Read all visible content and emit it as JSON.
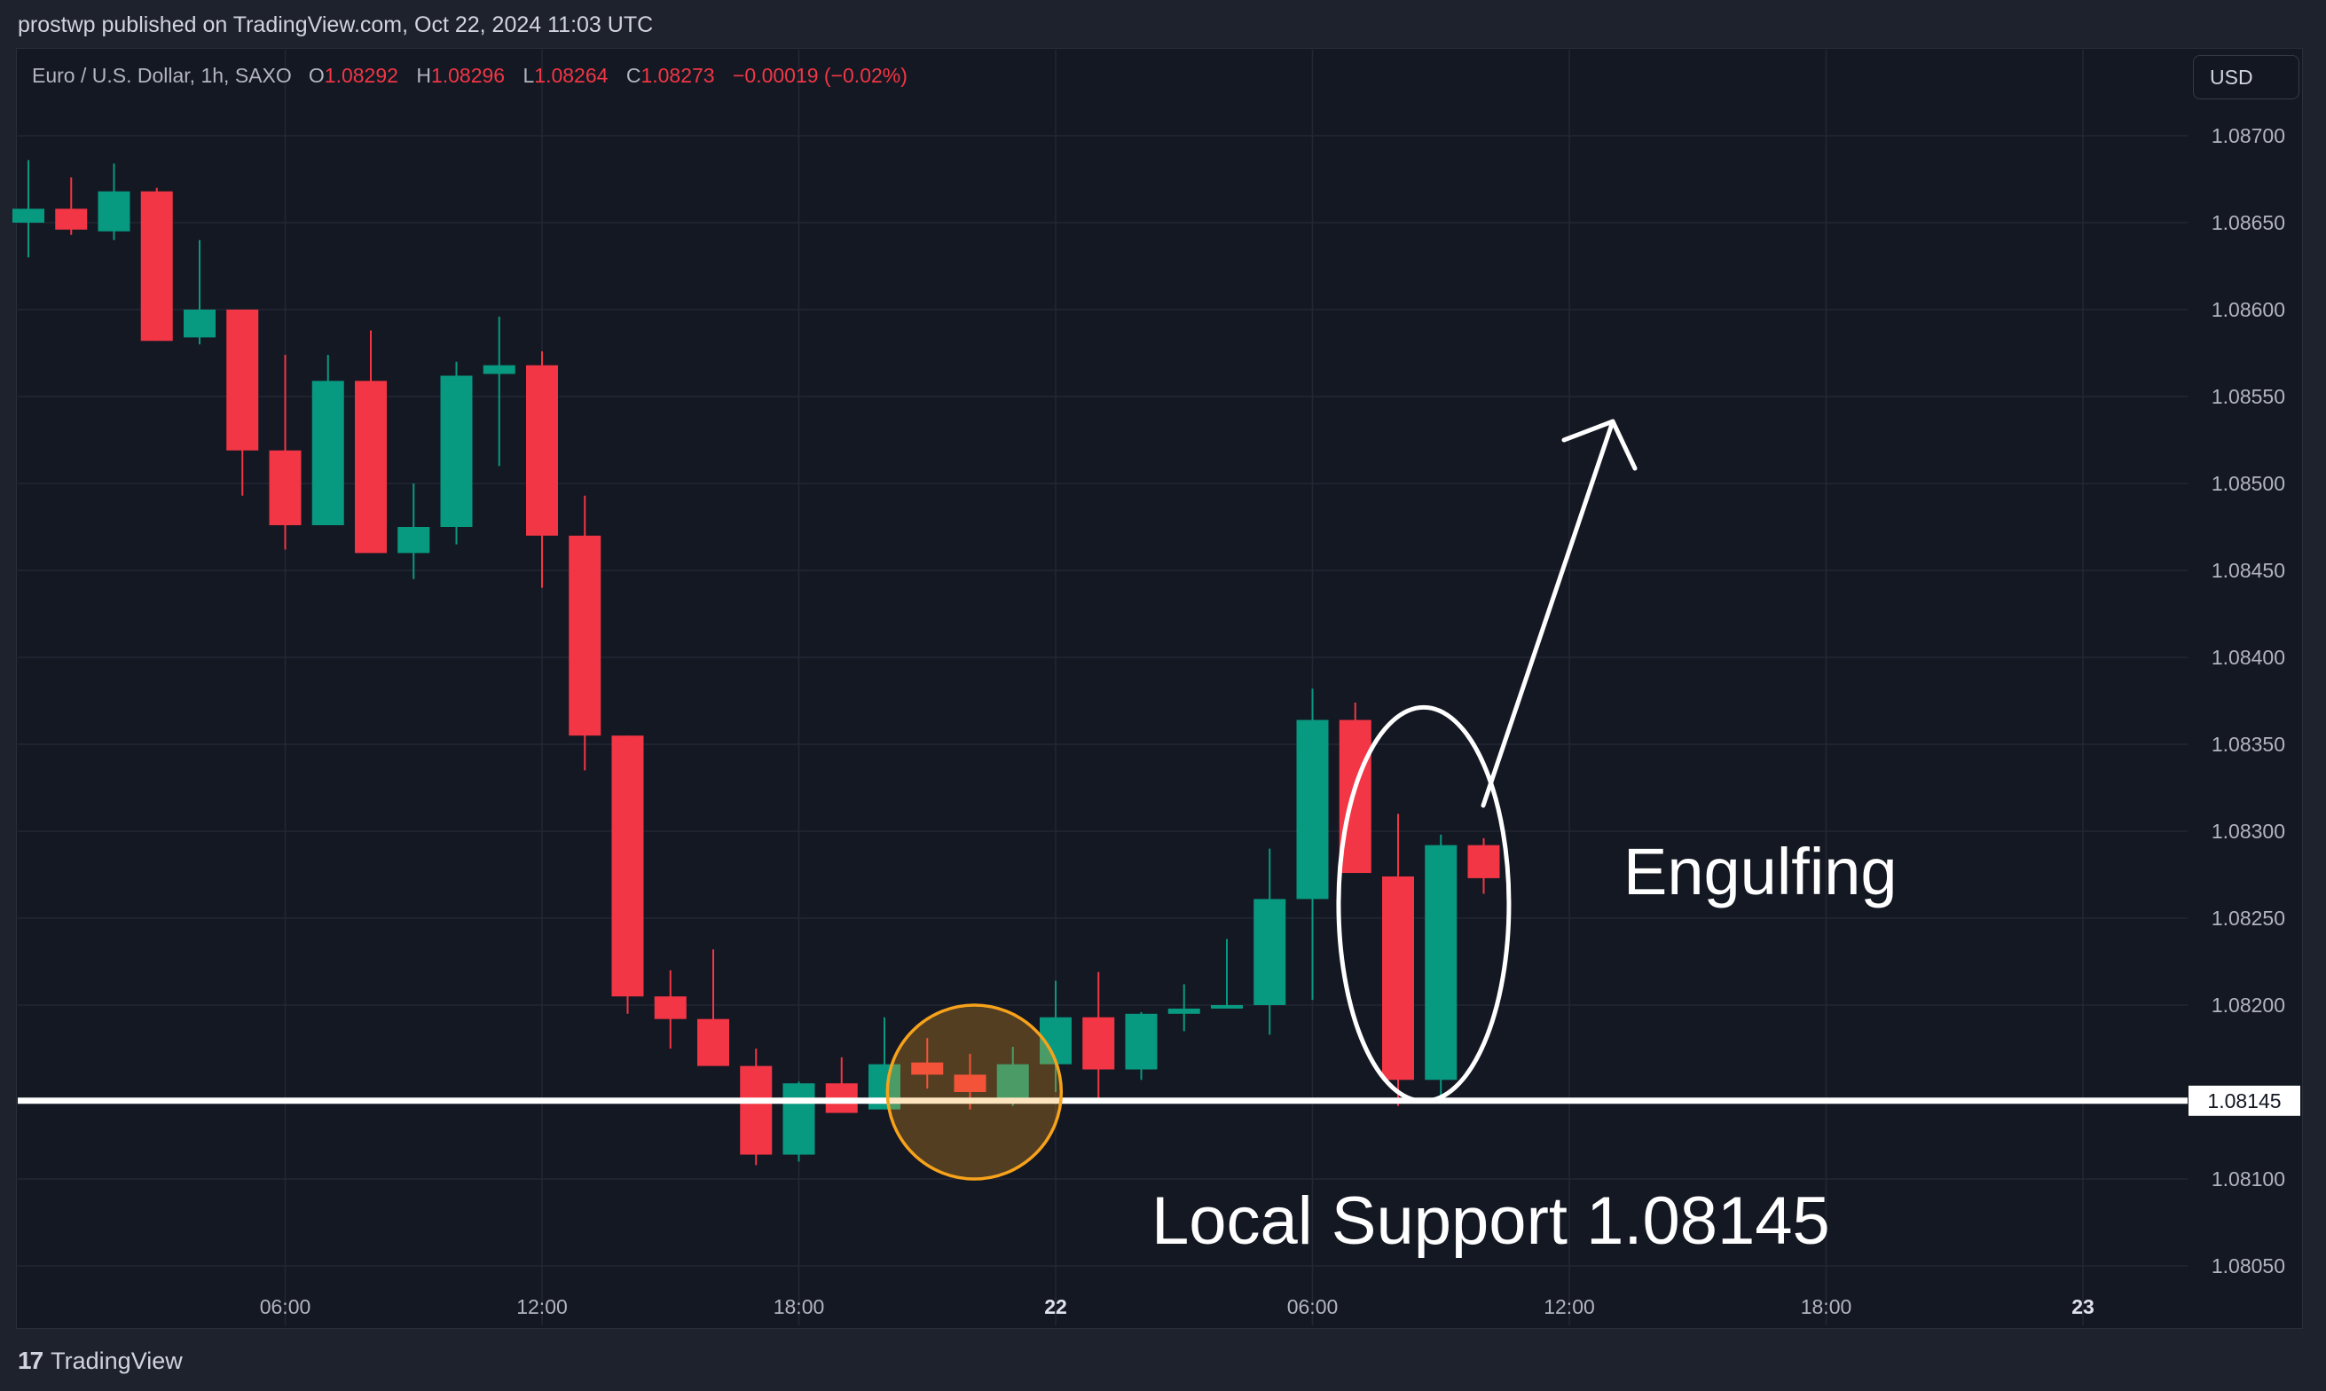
{
  "header": {
    "published": "prostwp published on TradingView.com, Oct 22, 2024 11:03 UTC"
  },
  "legend": {
    "symbol": "Euro / U.S. Dollar, 1h, SAXO",
    "o_label": "O",
    "o_value": "1.08292",
    "h_label": "H",
    "h_value": "1.08296",
    "l_label": "L",
    "l_value": "1.08264",
    "c_label": "C",
    "c_value": "1.08273",
    "change": "−0.00019 (−0.02%)"
  },
  "currency_button": "USD",
  "footer": {
    "logo_mark": "17",
    "logo_text": "TradingView"
  },
  "colors": {
    "up": "#089981",
    "down": "#f23645",
    "background": "#141823",
    "grid": "#232735",
    "highlight": "#f7a21b"
  },
  "chart_data": {
    "type": "candlestick",
    "y_ticks": [
      "1.08700",
      "1.08650",
      "1.08600",
      "1.08550",
      "1.08500",
      "1.08450",
      "1.08400",
      "1.08350",
      "1.08300",
      "1.08250",
      "1.08200",
      "1.08145",
      "1.08100",
      "1.08050"
    ],
    "ylim": [
      1.0803,
      1.0876
    ],
    "x_ticks": [
      {
        "label": "06:00",
        "hour": 6
      },
      {
        "label": "12:00",
        "hour": 12
      },
      {
        "label": "18:00",
        "hour": 18
      },
      {
        "label": "22",
        "hour": 24
      },
      {
        "label": "06:00",
        "hour": 30
      },
      {
        "label": "12:00",
        "hour": 36
      },
      {
        "label": "18:00",
        "hour": 42
      },
      {
        "label": "23",
        "hour": 48
      }
    ],
    "candles": [
      {
        "t": 0,
        "o": 1.0865,
        "h": 1.08686,
        "l": 1.0863,
        "c": 1.08658
      },
      {
        "t": 1,
        "o": 1.08658,
        "h": 1.08676,
        "l": 1.08643,
        "c": 1.08646
      },
      {
        "t": 2,
        "o": 1.08645,
        "h": 1.08684,
        "l": 1.0864,
        "c": 1.08668
      },
      {
        "t": 3,
        "o": 1.08668,
        "h": 1.0867,
        "l": 1.08582,
        "c": 1.08582
      },
      {
        "t": 4,
        "o": 1.08584,
        "h": 1.0864,
        "l": 1.0858,
        "c": 1.086
      },
      {
        "t": 5,
        "o": 1.086,
        "h": 1.086,
        "l": 1.08493,
        "c": 1.08519
      },
      {
        "t": 6,
        "o": 1.08519,
        "h": 1.08574,
        "l": 1.08462,
        "c": 1.08476
      },
      {
        "t": 7,
        "o": 1.08476,
        "h": 1.08574,
        "l": 1.08476,
        "c": 1.08559
      },
      {
        "t": 8,
        "o": 1.08559,
        "h": 1.08588,
        "l": 1.0846,
        "c": 1.0846
      },
      {
        "t": 9,
        "o": 1.0846,
        "h": 1.085,
        "l": 1.08445,
        "c": 1.08475
      },
      {
        "t": 10,
        "o": 1.08475,
        "h": 1.0857,
        "l": 1.08465,
        "c": 1.08562
      },
      {
        "t": 11,
        "o": 1.08563,
        "h": 1.08596,
        "l": 1.0851,
        "c": 1.08568
      },
      {
        "t": 12,
        "o": 1.08568,
        "h": 1.08576,
        "l": 1.0844,
        "c": 1.0847
      },
      {
        "t": 13,
        "o": 1.0847,
        "h": 1.08493,
        "l": 1.08335,
        "c": 1.08355
      },
      {
        "t": 14,
        "o": 1.08355,
        "h": 1.08355,
        "l": 1.08195,
        "c": 1.08205
      },
      {
        "t": 15,
        "o": 1.08205,
        "h": 1.0822,
        "l": 1.08175,
        "c": 1.08192
      },
      {
        "t": 16,
        "o": 1.08192,
        "h": 1.08232,
        "l": 1.08165,
        "c": 1.08165
      },
      {
        "t": 17,
        "o": 1.08165,
        "h": 1.08175,
        "l": 1.08108,
        "c": 1.08114
      },
      {
        "t": 18,
        "o": 1.08114,
        "h": 1.08156,
        "l": 1.0811,
        "c": 1.08155
      },
      {
        "t": 19,
        "o": 1.08155,
        "h": 1.0817,
        "l": 1.0814,
        "c": 1.08138
      },
      {
        "t": 20,
        "o": 1.0814,
        "h": 1.08193,
        "l": 1.0814,
        "c": 1.08166
      },
      {
        "t": 21,
        "o": 1.08167,
        "h": 1.08181,
        "l": 1.08152,
        "c": 1.0816
      },
      {
        "t": 22,
        "o": 1.0816,
        "h": 1.08172,
        "l": 1.0814,
        "c": 1.0815
      },
      {
        "t": 23,
        "o": 1.08145,
        "h": 1.08176,
        "l": 1.08142,
        "c": 1.08166
      },
      {
        "t": 24,
        "o": 1.08166,
        "h": 1.08214,
        "l": 1.0815,
        "c": 1.08193
      },
      {
        "t": 25,
        "o": 1.08193,
        "h": 1.08219,
        "l": 1.08145,
        "c": 1.08163
      },
      {
        "t": 26,
        "o": 1.08163,
        "h": 1.08196,
        "l": 1.08157,
        "c": 1.08195
      },
      {
        "t": 27,
        "o": 1.08195,
        "h": 1.08212,
        "l": 1.08185,
        "c": 1.08198
      },
      {
        "t": 28,
        "o": 1.08198,
        "h": 1.08238,
        "l": 1.08198,
        "c": 1.082
      },
      {
        "t": 29,
        "o": 1.082,
        "h": 1.0829,
        "l": 1.08183,
        "c": 1.08261
      },
      {
        "t": 30,
        "o": 1.08261,
        "h": 1.08382,
        "l": 1.08203,
        "c": 1.08364
      },
      {
        "t": 31,
        "o": 1.08364,
        "h": 1.08374,
        "l": 1.08276,
        "c": 1.08276
      },
      {
        "t": 32,
        "o": 1.08274,
        "h": 1.0831,
        "l": 1.08142,
        "c": 1.08157
      },
      {
        "t": 33,
        "o": 1.08157,
        "h": 1.08298,
        "l": 1.08148,
        "c": 1.08292
      },
      {
        "t": 34,
        "o": 1.08292,
        "h": 1.08296,
        "l": 1.08264,
        "c": 1.08273
      }
    ],
    "support": {
      "value": 1.08145,
      "label": "1.08145"
    },
    "annotations": [
      {
        "kind": "text",
        "text": "Engulfing"
      },
      {
        "kind": "text",
        "text": "Local Support 1.08145"
      },
      {
        "kind": "ellipse",
        "note": "engulfing pattern"
      },
      {
        "kind": "circle",
        "note": "support touches"
      },
      {
        "kind": "arrow",
        "note": "expected upward move"
      }
    ]
  }
}
